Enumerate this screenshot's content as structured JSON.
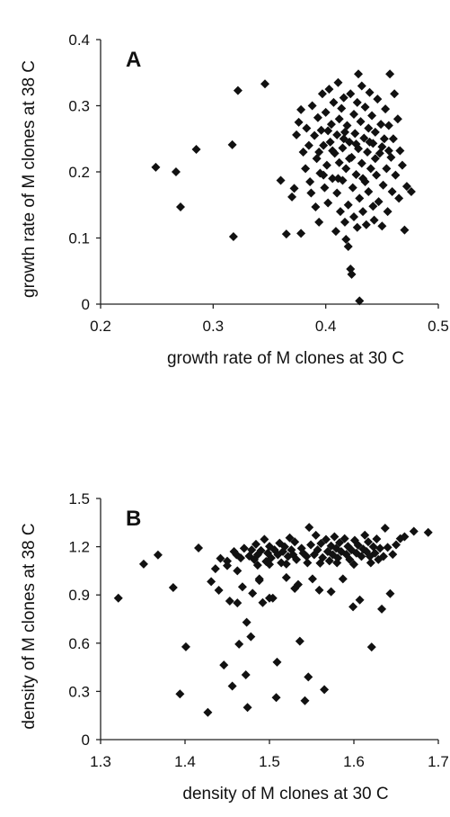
{
  "chart_data": [
    {
      "type": "scatter",
      "panel_label": "A",
      "xlabel": "growth rate of M clones at 30 C",
      "ylabel": "growth rate of M clones at 38 C",
      "xlim": [
        0.2,
        0.5
      ],
      "ylim": [
        0,
        0.4
      ],
      "xticks": [
        0.2,
        0.3,
        0.4,
        0.5
      ],
      "xtick_labels": [
        "0.2",
        "0.3",
        "0.4",
        "0.5"
      ],
      "yticks": [
        0,
        0.1,
        0.2,
        0.3,
        0.4
      ],
      "ytick_labels": [
        "0",
        "0.1",
        "0.2",
        "0.3",
        "0.4"
      ],
      "grid": false,
      "marker": "diamond",
      "marker_color": "#111111",
      "points": [
        [
          0.249,
          0.207
        ],
        [
          0.267,
          0.2
        ],
        [
          0.271,
          0.147
        ],
        [
          0.285,
          0.234
        ],
        [
          0.317,
          0.241
        ],
        [
          0.318,
          0.102
        ],
        [
          0.322,
          0.323
        ],
        [
          0.346,
          0.333
        ],
        [
          0.36,
          0.187
        ],
        [
          0.365,
          0.106
        ],
        [
          0.37,
          0.162
        ],
        [
          0.372,
          0.175
        ],
        [
          0.374,
          0.256
        ],
        [
          0.376,
          0.275
        ],
        [
          0.378,
          0.294
        ],
        [
          0.378,
          0.107
        ],
        [
          0.38,
          0.23
        ],
        [
          0.382,
          0.205
        ],
        [
          0.383,
          0.266
        ],
        [
          0.385,
          0.24
        ],
        [
          0.386,
          0.185
        ],
        [
          0.387,
          0.168
        ],
        [
          0.388,
          0.3
        ],
        [
          0.39,
          0.255
        ],
        [
          0.391,
          0.147
        ],
        [
          0.392,
          0.22
        ],
        [
          0.393,
          0.282
        ],
        [
          0.394,
          0.124
        ],
        [
          0.395,
          0.198
        ],
        [
          0.396,
          0.263
        ],
        [
          0.397,
          0.318
        ],
        [
          0.398,
          0.24
        ],
        [
          0.399,
          0.176
        ],
        [
          0.4,
          0.29
        ],
        [
          0.401,
          0.21
        ],
        [
          0.402,
          0.153
        ],
        [
          0.403,
          0.325
        ],
        [
          0.404,
          0.245
        ],
        [
          0.405,
          0.272
        ],
        [
          0.406,
          0.19
        ],
        [
          0.407,
          0.305
        ],
        [
          0.408,
          0.228
        ],
        [
          0.409,
          0.11
        ],
        [
          0.41,
          0.256
        ],
        [
          0.41,
          0.168
        ],
        [
          0.411,
          0.335
        ],
        [
          0.412,
          0.28
        ],
        [
          0.412,
          0.214
        ],
        [
          0.413,
          0.14
        ],
        [
          0.414,
          0.296
        ],
        [
          0.415,
          0.236
        ],
        [
          0.415,
          0.187
        ],
        [
          0.416,
          0.312
        ],
        [
          0.417,
          0.26
        ],
        [
          0.417,
          0.124
        ],
        [
          0.418,
          0.098
        ],
        [
          0.418,
          0.205
        ],
        [
          0.419,
          0.27
        ],
        [
          0.42,
          0.087
        ],
        [
          0.42,
          0.15
        ],
        [
          0.421,
          0.245
        ],
        [
          0.422,
          0.053
        ],
        [
          0.422,
          0.318
        ],
        [
          0.423,
          0.045
        ],
        [
          0.423,
          0.222
        ],
        [
          0.424,
          0.176
        ],
        [
          0.425,
          0.287
        ],
        [
          0.425,
          0.132
        ],
        [
          0.426,
          0.258
        ],
        [
          0.427,
          0.196
        ],
        [
          0.428,
          0.305
        ],
        [
          0.428,
          0.116
        ],
        [
          0.429,
          0.348
        ],
        [
          0.429,
          0.235
        ],
        [
          0.43,
          0.005
        ],
        [
          0.43,
          0.16
        ],
        [
          0.431,
          0.276
        ],
        [
          0.432,
          0.213
        ],
        [
          0.432,
          0.33
        ],
        [
          0.433,
          0.14
        ],
        [
          0.434,
          0.251
        ],
        [
          0.435,
          0.185
        ],
        [
          0.435,
          0.298
        ],
        [
          0.436,
          0.12
        ],
        [
          0.437,
          0.23
        ],
        [
          0.438,
          0.266
        ],
        [
          0.438,
          0.17
        ],
        [
          0.439,
          0.32
        ],
        [
          0.44,
          0.205
        ],
        [
          0.441,
          0.285
        ],
        [
          0.442,
          0.148
        ],
        [
          0.442,
          0.243
        ],
        [
          0.443,
          0.127
        ],
        [
          0.444,
          0.26
        ],
        [
          0.445,
          0.195
        ],
        [
          0.446,
          0.31
        ],
        [
          0.447,
          0.155
        ],
        [
          0.448,
          0.228
        ],
        [
          0.449,
          0.272
        ],
        [
          0.45,
          0.118
        ],
        [
          0.451,
          0.18
        ],
        [
          0.452,
          0.25
        ],
        [
          0.453,
          0.295
        ],
        [
          0.454,
          0.205
        ],
        [
          0.455,
          0.14
        ],
        [
          0.456,
          0.27
        ],
        [
          0.457,
          0.348
        ],
        [
          0.458,
          0.222
        ],
        [
          0.459,
          0.17
        ],
        [
          0.46,
          0.25
        ],
        [
          0.461,
          0.318
        ],
        [
          0.462,
          0.195
        ],
        [
          0.464,
          0.28
        ],
        [
          0.465,
          0.16
        ],
        [
          0.466,
          0.232
        ],
        [
          0.468,
          0.21
        ],
        [
          0.47,
          0.112
        ],
        [
          0.472,
          0.178
        ],
        [
          0.476,
          0.17
        ],
        [
          0.394,
          0.23
        ],
        [
          0.398,
          0.195
        ],
        [
          0.402,
          0.262
        ],
        [
          0.406,
          0.232
        ],
        [
          0.411,
          0.19
        ],
        [
          0.416,
          0.25
        ],
        [
          0.421,
          0.22
        ],
        [
          0.427,
          0.242
        ],
        [
          0.433,
          0.19
        ],
        [
          0.439,
          0.245
        ],
        [
          0.444,
          0.22
        ],
        [
          0.45,
          0.238
        ],
        [
          0.456,
          0.232
        ]
      ]
    },
    {
      "type": "scatter",
      "panel_label": "B",
      "xlabel": "density of M clones at 30 C",
      "ylabel": "density of M clones at  38 C",
      "xlim": [
        1.3,
        1.7
      ],
      "ylim": [
        0,
        1.5
      ],
      "xticks": [
        1.3,
        1.4,
        1.5,
        1.6,
        1.7
      ],
      "xtick_labels": [
        "1.3",
        "1.4",
        "1.5",
        "1.6",
        "1.7"
      ],
      "yticks": [
        0,
        0.3,
        0.6,
        0.9,
        1.2,
        1.5
      ],
      "ytick_labels": [
        "0",
        "0.3",
        "0.6",
        "0.9",
        "1.2",
        "1.5"
      ],
      "grid": false,
      "marker": "diamond",
      "marker_color": "#111111",
      "points": [
        [
          1.321,
          0.88
        ],
        [
          1.351,
          1.092
        ],
        [
          1.368,
          1.149
        ],
        [
          1.386,
          0.946
        ],
        [
          1.394,
          0.284
        ],
        [
          1.401,
          0.577
        ],
        [
          1.416,
          1.192
        ],
        [
          1.427,
          0.169
        ],
        [
          1.431,
          0.983
        ],
        [
          1.436,
          1.063
        ],
        [
          1.44,
          0.929
        ],
        [
          1.442,
          1.127
        ],
        [
          1.446,
          0.464
        ],
        [
          1.45,
          1.11
        ],
        [
          1.453,
          0.862
        ],
        [
          1.456,
          0.333
        ],
        [
          1.458,
          1.17
        ],
        [
          1.461,
          1.15
        ],
        [
          1.464,
          0.594
        ],
        [
          1.466,
          1.13
        ],
        [
          1.468,
          0.95
        ],
        [
          1.47,
          1.19
        ],
        [
          1.472,
          0.403
        ],
        [
          1.473,
          0.73
        ],
        [
          1.474,
          0.2
        ],
        [
          1.476,
          1.142
        ],
        [
          1.478,
          0.64
        ],
        [
          1.479,
          1.18
        ],
        [
          1.48,
          0.91
        ],
        [
          1.482,
          1.12
        ],
        [
          1.484,
          1.215
        ],
        [
          1.486,
          1.15
        ],
        [
          1.488,
          1.0
        ],
        [
          1.49,
          1.176
        ],
        [
          1.492,
          0.852
        ],
        [
          1.494,
          1.246
        ],
        [
          1.496,
          1.108
        ],
        [
          1.498,
          1.16
        ],
        [
          1.5,
          1.202
        ],
        [
          1.502,
          1.13
        ],
        [
          1.504,
          0.88
        ],
        [
          1.506,
          1.18
        ],
        [
          1.508,
          0.262
        ],
        [
          1.509,
          0.482
        ],
        [
          1.51,
          1.15
        ],
        [
          1.512,
          1.222
        ],
        [
          1.514,
          1.1
        ],
        [
          1.516,
          1.17
        ],
        [
          1.518,
          1.2
        ],
        [
          1.52,
          1.008
        ],
        [
          1.522,
          1.14
        ],
        [
          1.524,
          1.255
        ],
        [
          1.526,
          1.18
        ],
        [
          1.528,
          1.15
        ],
        [
          1.53,
          1.23
        ],
        [
          1.532,
          1.12
        ],
        [
          1.534,
          0.965
        ],
        [
          1.536,
          0.612
        ],
        [
          1.538,
          1.19
        ],
        [
          1.54,
          1.16
        ],
        [
          1.542,
          0.242
        ],
        [
          1.544,
          1.14
        ],
        [
          1.546,
          0.39
        ],
        [
          1.547,
          1.32
        ],
        [
          1.549,
          1.212
        ],
        [
          1.551,
          1.0
        ],
        [
          1.553,
          1.15
        ],
        [
          1.555,
          1.271
        ],
        [
          1.557,
          1.18
        ],
        [
          1.559,
          0.93
        ],
        [
          1.561,
          1.22
        ],
        [
          1.563,
          1.132
        ],
        [
          1.565,
          0.311
        ],
        [
          1.567,
          1.245
        ],
        [
          1.569,
          1.17
        ],
        [
          1.571,
          1.112
        ],
        [
          1.573,
          1.205
        ],
        [
          1.575,
          1.15
        ],
        [
          1.577,
          1.262
        ],
        [
          1.579,
          1.19
        ],
        [
          1.581,
          1.13
        ],
        [
          1.583,
          1.225
        ],
        [
          1.585,
          1.17
        ],
        [
          1.587,
          1.0
        ],
        [
          1.589,
          1.25
        ],
        [
          1.591,
          1.152
        ],
        [
          1.593,
          1.202
        ],
        [
          1.595,
          1.12
        ],
        [
          1.597,
          1.18
        ],
        [
          1.599,
          0.826
        ],
        [
          1.601,
          1.24
        ],
        [
          1.603,
          1.16
        ],
        [
          1.605,
          1.21
        ],
        [
          1.607,
          0.869
        ],
        [
          1.609,
          1.14
        ],
        [
          1.611,
          1.185
        ],
        [
          1.613,
          1.272
        ],
        [
          1.615,
          1.17
        ],
        [
          1.617,
          1.23
        ],
        [
          1.619,
          1.14
        ],
        [
          1.621,
          0.576
        ],
        [
          1.623,
          1.2
        ],
        [
          1.625,
          1.16
        ],
        [
          1.627,
          1.248
        ],
        [
          1.629,
          1.12
        ],
        [
          1.631,
          1.19
        ],
        [
          1.633,
          0.812
        ],
        [
          1.635,
          1.14
        ],
        [
          1.637,
          1.315
        ],
        [
          1.64,
          1.196
        ],
        [
          1.643,
          0.908
        ],
        [
          1.646,
          1.152
        ],
        [
          1.65,
          1.212
        ],
        [
          1.655,
          1.25
        ],
        [
          1.66,
          1.262
        ],
        [
          1.671,
          1.296
        ],
        [
          1.688,
          1.289
        ],
        [
          1.45,
          1.082
        ],
        [
          1.462,
          1.05
        ],
        [
          1.486,
          1.085
        ],
        [
          1.5,
          1.09
        ],
        [
          1.52,
          1.092
        ],
        [
          1.545,
          1.1
        ],
        [
          1.56,
          1.098
        ],
        [
          1.58,
          1.1
        ],
        [
          1.6,
          1.09
        ],
        [
          1.62,
          1.1
        ],
        [
          1.462,
          0.85
        ],
        [
          1.5,
          0.88
        ],
        [
          1.573,
          0.92
        ],
        [
          1.53,
          0.94
        ],
        [
          1.488,
          0.99
        ]
      ]
    }
  ]
}
